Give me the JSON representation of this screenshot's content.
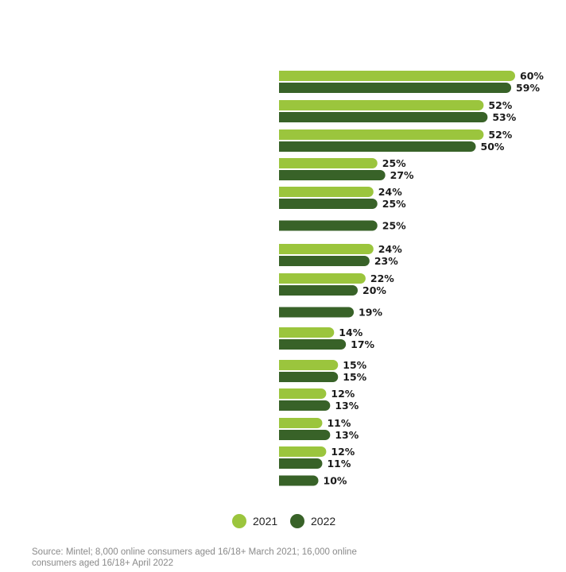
{
  "chart_data": {
    "type": "bar",
    "orientation": "horizontal",
    "categories": [
      "",
      "",
      "",
      "",
      "",
      "",
      "",
      "",
      "",
      "",
      "",
      "",
      "",
      "",
      ""
    ],
    "series": [
      {
        "name": "2021",
        "color": "#9bc53d",
        "values": [
          60,
          52,
          52,
          25,
          24,
          null,
          24,
          22,
          null,
          14,
          15,
          12,
          11,
          12,
          null
        ]
      },
      {
        "name": "2022",
        "color": "#386228",
        "values": [
          59,
          53,
          50,
          27,
          25,
          25,
          23,
          20,
          19,
          17,
          15,
          13,
          13,
          11,
          10
        ]
      }
    ],
    "value_suffix": "%",
    "legend": {
      "placement": "bottom-center",
      "items": [
        "2021",
        "2022"
      ]
    },
    "grid": false,
    "xlim": [
      0,
      60
    ]
  },
  "source_note": "Source: Mintel; 8,000 online consumers aged 16/18+ March 2021; 16,000 online consumers aged 16/18+ April 2022"
}
